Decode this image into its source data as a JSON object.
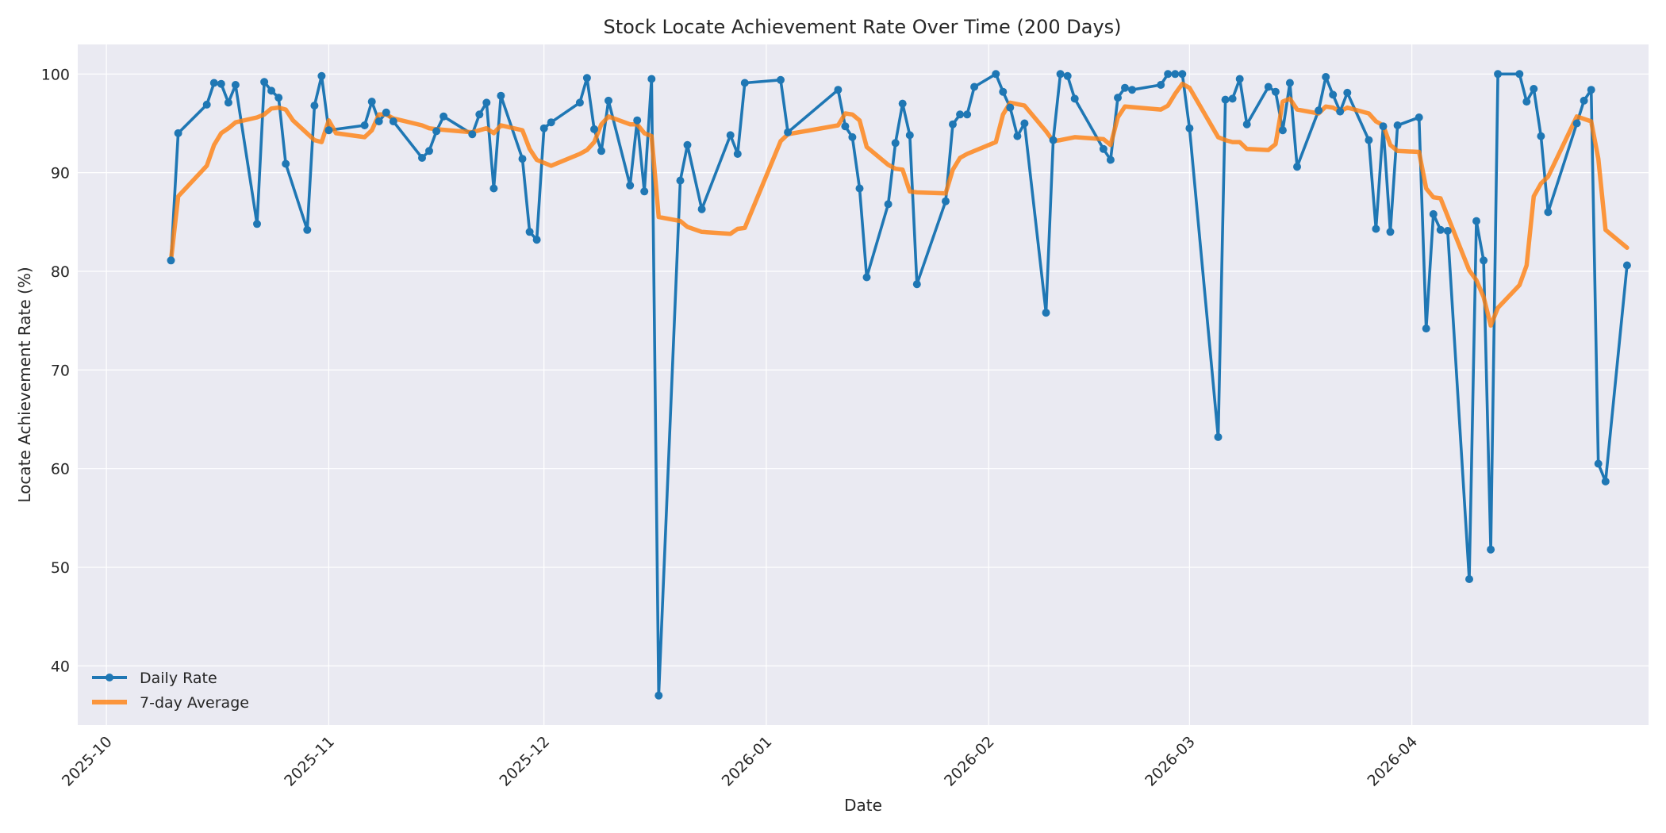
{
  "chart_data": {
    "type": "line",
    "title": "Stock Locate Achievement Rate Over Time (200 Days)",
    "xlabel": "Date",
    "ylabel": "Locate Achievement Rate (%)",
    "xlim": [
      "2025-09-30",
      "2026-04-28"
    ],
    "ylim": [
      34,
      103
    ],
    "y_ticks": [
      40,
      50,
      60,
      70,
      80,
      90,
      100
    ],
    "x_ticks": [
      {
        "date": "2025-10-01",
        "label": "2025-10"
      },
      {
        "date": "2025-11-01",
        "label": "2025-11"
      },
      {
        "date": "2025-12-01",
        "label": "2025-12"
      },
      {
        "date": "2026-01-01",
        "label": "2026-01"
      },
      {
        "date": "2026-02-01",
        "label": "2026-02"
      },
      {
        "date": "2026-03-01",
        "label": "2026-03"
      },
      {
        "date": "2026-04-01",
        "label": "2026-04"
      }
    ],
    "grid": true,
    "legend_position": "bottom-left",
    "colors": {
      "plot_background": "#eaeaf2",
      "grid": "#ffffff",
      "daily": "#1f77b4",
      "average": "#ff7f0e"
    },
    "series": [
      {
        "name": "Daily Rate",
        "style": "line-with-markers",
        "points": [
          [
            "2025-10-10",
            81.1
          ],
          [
            "2025-10-11",
            94.0
          ],
          [
            "2025-10-15",
            96.9
          ],
          [
            "2025-10-16",
            99.1
          ],
          [
            "2025-10-17",
            99.0
          ],
          [
            "2025-10-18",
            97.1
          ],
          [
            "2025-10-19",
            98.9
          ],
          [
            "2025-10-22",
            84.8
          ],
          [
            "2025-10-23",
            99.2
          ],
          [
            "2025-10-24",
            98.3
          ],
          [
            "2025-10-25",
            97.6
          ],
          [
            "2025-10-26",
            90.9
          ],
          [
            "2025-10-29",
            84.2
          ],
          [
            "2025-10-30",
            96.8
          ],
          [
            "2025-10-31",
            99.8
          ],
          [
            "2025-11-01",
            94.3
          ],
          [
            "2025-11-06",
            94.8
          ],
          [
            "2025-11-07",
            97.2
          ],
          [
            "2025-11-08",
            95.2
          ],
          [
            "2025-11-09",
            96.1
          ],
          [
            "2025-11-10",
            95.2
          ],
          [
            "2025-11-14",
            91.5
          ],
          [
            "2025-11-15",
            92.2
          ],
          [
            "2025-11-16",
            94.2
          ],
          [
            "2025-11-17",
            95.7
          ],
          [
            "2025-11-21",
            93.9
          ],
          [
            "2025-11-22",
            95.9
          ],
          [
            "2025-11-23",
            97.1
          ],
          [
            "2025-11-24",
            88.4
          ],
          [
            "2025-11-25",
            97.8
          ],
          [
            "2025-11-28",
            91.4
          ],
          [
            "2025-11-29",
            84.0
          ],
          [
            "2025-11-30",
            83.2
          ],
          [
            "2025-12-01",
            94.5
          ],
          [
            "2025-12-02",
            95.1
          ],
          [
            "2025-12-06",
            97.1
          ],
          [
            "2025-12-07",
            99.6
          ],
          [
            "2025-12-08",
            94.4
          ],
          [
            "2025-12-09",
            92.2
          ],
          [
            "2025-12-10",
            97.3
          ],
          [
            "2025-12-13",
            88.7
          ],
          [
            "2025-12-14",
            95.3
          ],
          [
            "2025-12-15",
            88.1
          ],
          [
            "2025-12-16",
            99.5
          ],
          [
            "2025-12-17",
            37.0
          ],
          [
            "2025-12-20",
            89.2
          ],
          [
            "2025-12-21",
            92.8
          ],
          [
            "2025-12-23",
            86.3
          ],
          [
            "2025-12-27",
            93.8
          ],
          [
            "2025-12-28",
            91.9
          ],
          [
            "2025-12-29",
            99.1
          ],
          [
            "2026-01-03",
            99.4
          ],
          [
            "2026-01-04",
            94.1
          ],
          [
            "2026-01-11",
            98.4
          ],
          [
            "2026-01-12",
            94.7
          ],
          [
            "2026-01-13",
            93.6
          ],
          [
            "2026-01-14",
            88.4
          ],
          [
            "2026-01-15",
            79.4
          ],
          [
            "2026-01-18",
            86.8
          ],
          [
            "2026-01-19",
            93.0
          ],
          [
            "2026-01-20",
            97.0
          ],
          [
            "2026-01-21",
            93.8
          ],
          [
            "2026-01-22",
            78.7
          ],
          [
            "2026-01-26",
            87.1
          ],
          [
            "2026-01-27",
            94.9
          ],
          [
            "2026-01-28",
            95.9
          ],
          [
            "2026-01-29",
            95.9
          ],
          [
            "2026-01-30",
            98.7
          ],
          [
            "2026-02-02",
            100.0
          ],
          [
            "2026-02-03",
            98.2
          ],
          [
            "2026-02-04",
            96.6
          ],
          [
            "2026-02-05",
            93.7
          ],
          [
            "2026-02-06",
            95.0
          ],
          [
            "2026-02-09",
            75.8
          ],
          [
            "2026-02-10",
            93.3
          ],
          [
            "2026-02-11",
            100.0
          ],
          [
            "2026-02-12",
            99.8
          ],
          [
            "2026-02-13",
            97.5
          ],
          [
            "2026-02-17",
            92.4
          ],
          [
            "2026-02-18",
            91.3
          ],
          [
            "2026-02-19",
            97.6
          ],
          [
            "2026-02-20",
            98.6
          ],
          [
            "2026-02-21",
            98.4
          ],
          [
            "2026-02-25",
            98.9
          ],
          [
            "2026-02-26",
            100.0
          ],
          [
            "2026-02-27",
            100.0
          ],
          [
            "2026-02-28",
            100.0
          ],
          [
            "2026-03-01",
            94.5
          ],
          [
            "2026-03-05",
            63.2
          ],
          [
            "2026-03-06",
            97.4
          ],
          [
            "2026-03-07",
            97.5
          ],
          [
            "2026-03-08",
            99.5
          ],
          [
            "2026-03-09",
            94.9
          ],
          [
            "2026-03-12",
            98.7
          ],
          [
            "2026-03-13",
            98.2
          ],
          [
            "2026-03-14",
            94.3
          ],
          [
            "2026-03-15",
            99.1
          ],
          [
            "2026-03-16",
            90.6
          ],
          [
            "2026-03-19",
            96.3
          ],
          [
            "2026-03-20",
            99.7
          ],
          [
            "2026-03-21",
            97.9
          ],
          [
            "2026-03-22",
            96.2
          ],
          [
            "2026-03-23",
            98.1
          ],
          [
            "2026-03-26",
            93.3
          ],
          [
            "2026-03-27",
            84.3
          ],
          [
            "2026-03-28",
            94.7
          ],
          [
            "2026-03-29",
            84.0
          ],
          [
            "2026-03-30",
            94.8
          ],
          [
            "2026-04-02",
            95.6
          ],
          [
            "2026-04-03",
            74.2
          ],
          [
            "2026-04-04",
            85.8
          ],
          [
            "2026-04-05",
            84.2
          ],
          [
            "2026-04-06",
            84.1
          ],
          [
            "2026-04-09",
            48.8
          ],
          [
            "2026-04-10",
            85.1
          ],
          [
            "2026-04-11",
            81.1
          ],
          [
            "2026-04-12",
            51.8
          ],
          [
            "2026-04-13",
            100.0
          ],
          [
            "2026-04-16",
            100.0
          ],
          [
            "2026-04-17",
            97.2
          ],
          [
            "2026-04-18",
            98.5
          ],
          [
            "2026-04-19",
            93.7
          ],
          [
            "2026-04-20",
            86.0
          ],
          [
            "2026-04-24",
            95.0
          ],
          [
            "2026-04-25",
            97.3
          ],
          [
            "2026-04-26",
            98.4
          ],
          [
            "2026-04-27",
            60.5
          ],
          [
            "2026-04-28",
            58.7
          ],
          [
            "2026-05-01",
            80.6
          ]
        ]
      },
      {
        "name": "7-day Average",
        "style": "thick-line",
        "points": [
          [
            "2025-10-10",
            81.1
          ],
          [
            "2025-10-11",
            87.6
          ],
          [
            "2025-10-15",
            90.7
          ],
          [
            "2025-10-16",
            92.8
          ],
          [
            "2025-10-17",
            94.0
          ],
          [
            "2025-10-18",
            94.5
          ],
          [
            "2025-10-19",
            95.1
          ],
          [
            "2025-10-22",
            95.6
          ],
          [
            "2025-10-23",
            95.9
          ],
          [
            "2025-10-24",
            96.5
          ],
          [
            "2025-10-25",
            96.6
          ],
          [
            "2025-10-26",
            96.4
          ],
          [
            "2025-10-27",
            95.3
          ],
          [
            "2025-10-30",
            93.3
          ],
          [
            "2025-10-31",
            93.1
          ],
          [
            "2025-11-01",
            95.3
          ],
          [
            "2025-11-02",
            94.0
          ],
          [
            "2025-11-06",
            93.6
          ],
          [
            "2025-11-07",
            94.3
          ],
          [
            "2025-11-08",
            95.9
          ],
          [
            "2025-11-09",
            95.9
          ],
          [
            "2025-11-10",
            95.5
          ],
          [
            "2025-11-14",
            94.8
          ],
          [
            "2025-11-15",
            94.5
          ],
          [
            "2025-11-16",
            94.4
          ],
          [
            "2025-11-21",
            94.1
          ],
          [
            "2025-11-23",
            94.5
          ],
          [
            "2025-11-24",
            94.0
          ],
          [
            "2025-11-25",
            94.8
          ],
          [
            "2025-11-28",
            94.3
          ],
          [
            "2025-11-29",
            92.4
          ],
          [
            "2025-11-30",
            91.3
          ],
          [
            "2025-12-02",
            90.7
          ],
          [
            "2025-12-06",
            91.9
          ],
          [
            "2025-12-07",
            92.3
          ],
          [
            "2025-12-08",
            93.1
          ],
          [
            "2025-12-09",
            94.9
          ],
          [
            "2025-12-10",
            95.7
          ],
          [
            "2025-12-13",
            94.9
          ],
          [
            "2025-12-14",
            94.9
          ],
          [
            "2025-12-15",
            94.0
          ],
          [
            "2025-12-16",
            93.7
          ],
          [
            "2025-12-17",
            85.5
          ],
          [
            "2025-12-20",
            85.1
          ],
          [
            "2025-12-21",
            84.5
          ],
          [
            "2025-12-23",
            84.0
          ],
          [
            "2025-12-27",
            83.8
          ],
          [
            "2025-12-28",
            84.3
          ],
          [
            "2025-12-29",
            84.4
          ],
          [
            "2026-01-03",
            93.2
          ],
          [
            "2026-01-04",
            93.9
          ],
          [
            "2026-01-11",
            94.8
          ],
          [
            "2026-01-12",
            96.0
          ],
          [
            "2026-01-13",
            95.9
          ],
          [
            "2026-01-14",
            95.3
          ],
          [
            "2026-01-15",
            92.6
          ],
          [
            "2026-01-18",
            90.8
          ],
          [
            "2026-01-19",
            90.4
          ],
          [
            "2026-01-20",
            90.3
          ],
          [
            "2026-01-21",
            88.1
          ],
          [
            "2026-01-22",
            88.0
          ],
          [
            "2026-01-26",
            87.9
          ],
          [
            "2026-01-27",
            90.3
          ],
          [
            "2026-01-28",
            91.5
          ],
          [
            "2026-01-29",
            91.9
          ],
          [
            "2026-02-02",
            93.1
          ],
          [
            "2026-02-03",
            95.9
          ],
          [
            "2026-02-04",
            97.1
          ],
          [
            "2026-02-06",
            96.8
          ],
          [
            "2026-02-09",
            94.2
          ],
          [
            "2026-02-10",
            93.2
          ],
          [
            "2026-02-11",
            93.3
          ],
          [
            "2026-02-13",
            93.6
          ],
          [
            "2026-02-17",
            93.4
          ],
          [
            "2026-02-18",
            92.8
          ],
          [
            "2026-02-19",
            95.6
          ],
          [
            "2026-02-20",
            96.7
          ],
          [
            "2026-02-25",
            96.4
          ],
          [
            "2026-02-26",
            96.8
          ],
          [
            "2026-02-27",
            98.0
          ],
          [
            "2026-02-28",
            99.0
          ],
          [
            "2026-03-01",
            98.6
          ],
          [
            "2026-03-05",
            93.6
          ],
          [
            "2026-03-06",
            93.3
          ],
          [
            "2026-03-07",
            93.1
          ],
          [
            "2026-03-08",
            93.1
          ],
          [
            "2026-03-09",
            92.4
          ],
          [
            "2026-03-12",
            92.3
          ],
          [
            "2026-03-13",
            92.9
          ],
          [
            "2026-03-14",
            97.2
          ],
          [
            "2026-03-15",
            97.5
          ],
          [
            "2026-03-16",
            96.4
          ],
          [
            "2026-03-19",
            96.0
          ],
          [
            "2026-03-20",
            96.7
          ],
          [
            "2026-03-21",
            96.6
          ],
          [
            "2026-03-22",
            96.2
          ],
          [
            "2026-03-23",
            96.6
          ],
          [
            "2026-03-26",
            96.0
          ],
          [
            "2026-03-27",
            95.2
          ],
          [
            "2026-03-28",
            94.8
          ],
          [
            "2026-03-29",
            92.8
          ],
          [
            "2026-03-30",
            92.2
          ],
          [
            "2026-04-02",
            92.1
          ],
          [
            "2026-04-03",
            88.4
          ],
          [
            "2026-04-04",
            87.5
          ],
          [
            "2026-04-05",
            87.4
          ],
          [
            "2026-04-09",
            80.1
          ],
          [
            "2026-04-10",
            79.1
          ],
          [
            "2026-04-11",
            77.4
          ],
          [
            "2026-04-12",
            74.5
          ],
          [
            "2026-04-13",
            76.3
          ],
          [
            "2026-04-16",
            78.6
          ],
          [
            "2026-04-17",
            80.6
          ],
          [
            "2026-04-18",
            87.6
          ],
          [
            "2026-04-19",
            88.9
          ],
          [
            "2026-04-20",
            89.6
          ],
          [
            "2026-04-24",
            95.7
          ],
          [
            "2026-04-26",
            95.2
          ],
          [
            "2026-04-27",
            91.4
          ],
          [
            "2026-04-28",
            84.2
          ],
          [
            "2026-05-01",
            82.4
          ]
        ]
      }
    ]
  }
}
